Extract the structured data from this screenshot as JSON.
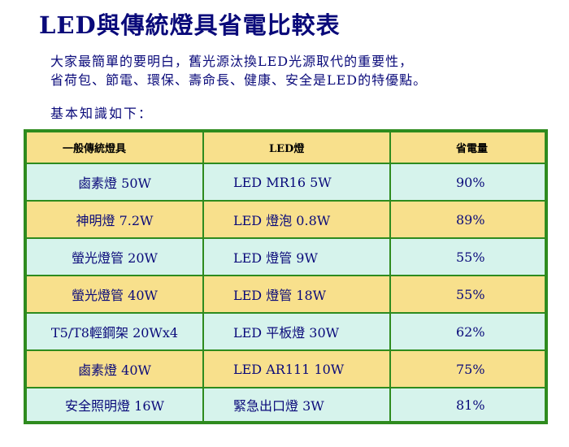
{
  "title": "LED與傳統燈具省電比較表",
  "intro": {
    "line1": "大家最簡單的要明白，舊光源汰換LED光源取代的重要性，",
    "line2": "省荷包、節電、環保、壽命長、健康、安全是LED的特優點。"
  },
  "basics": "基本知識如下：",
  "table": {
    "headers": [
      "一般傳統燈具",
      "LED燈",
      "省電量"
    ],
    "rows": [
      {
        "traditional": "鹵素燈 50W",
        "led": "LED MR16 5W",
        "saving": "90%"
      },
      {
        "traditional": "神明燈 7.2W",
        "led": "LED 燈泡 0.8W",
        "saving": "89%"
      },
      {
        "traditional": "螢光燈管 20W",
        "led": "LED 燈管 9W",
        "saving": "55%"
      },
      {
        "traditional": "螢光燈管 40W",
        "led": "LED 燈管 18W",
        "saving": "55%"
      },
      {
        "traditional": "T5/T8輕鋼架 20Wx4",
        "led": "LED 平板燈 30W",
        "saving": "62%"
      },
      {
        "traditional": "鹵素燈 40W",
        "led": "LED AR111 10W",
        "saving": "75%"
      },
      {
        "traditional": "安全照明燈 16W",
        "led": "緊急出口燈 3W",
        "saving": "81%"
      }
    ]
  },
  "colors": {
    "text": "#0a0a7a",
    "border": "#2e8b1e",
    "row_yellow": "#f8e08c",
    "row_cyan": "#d6f3ec"
  }
}
